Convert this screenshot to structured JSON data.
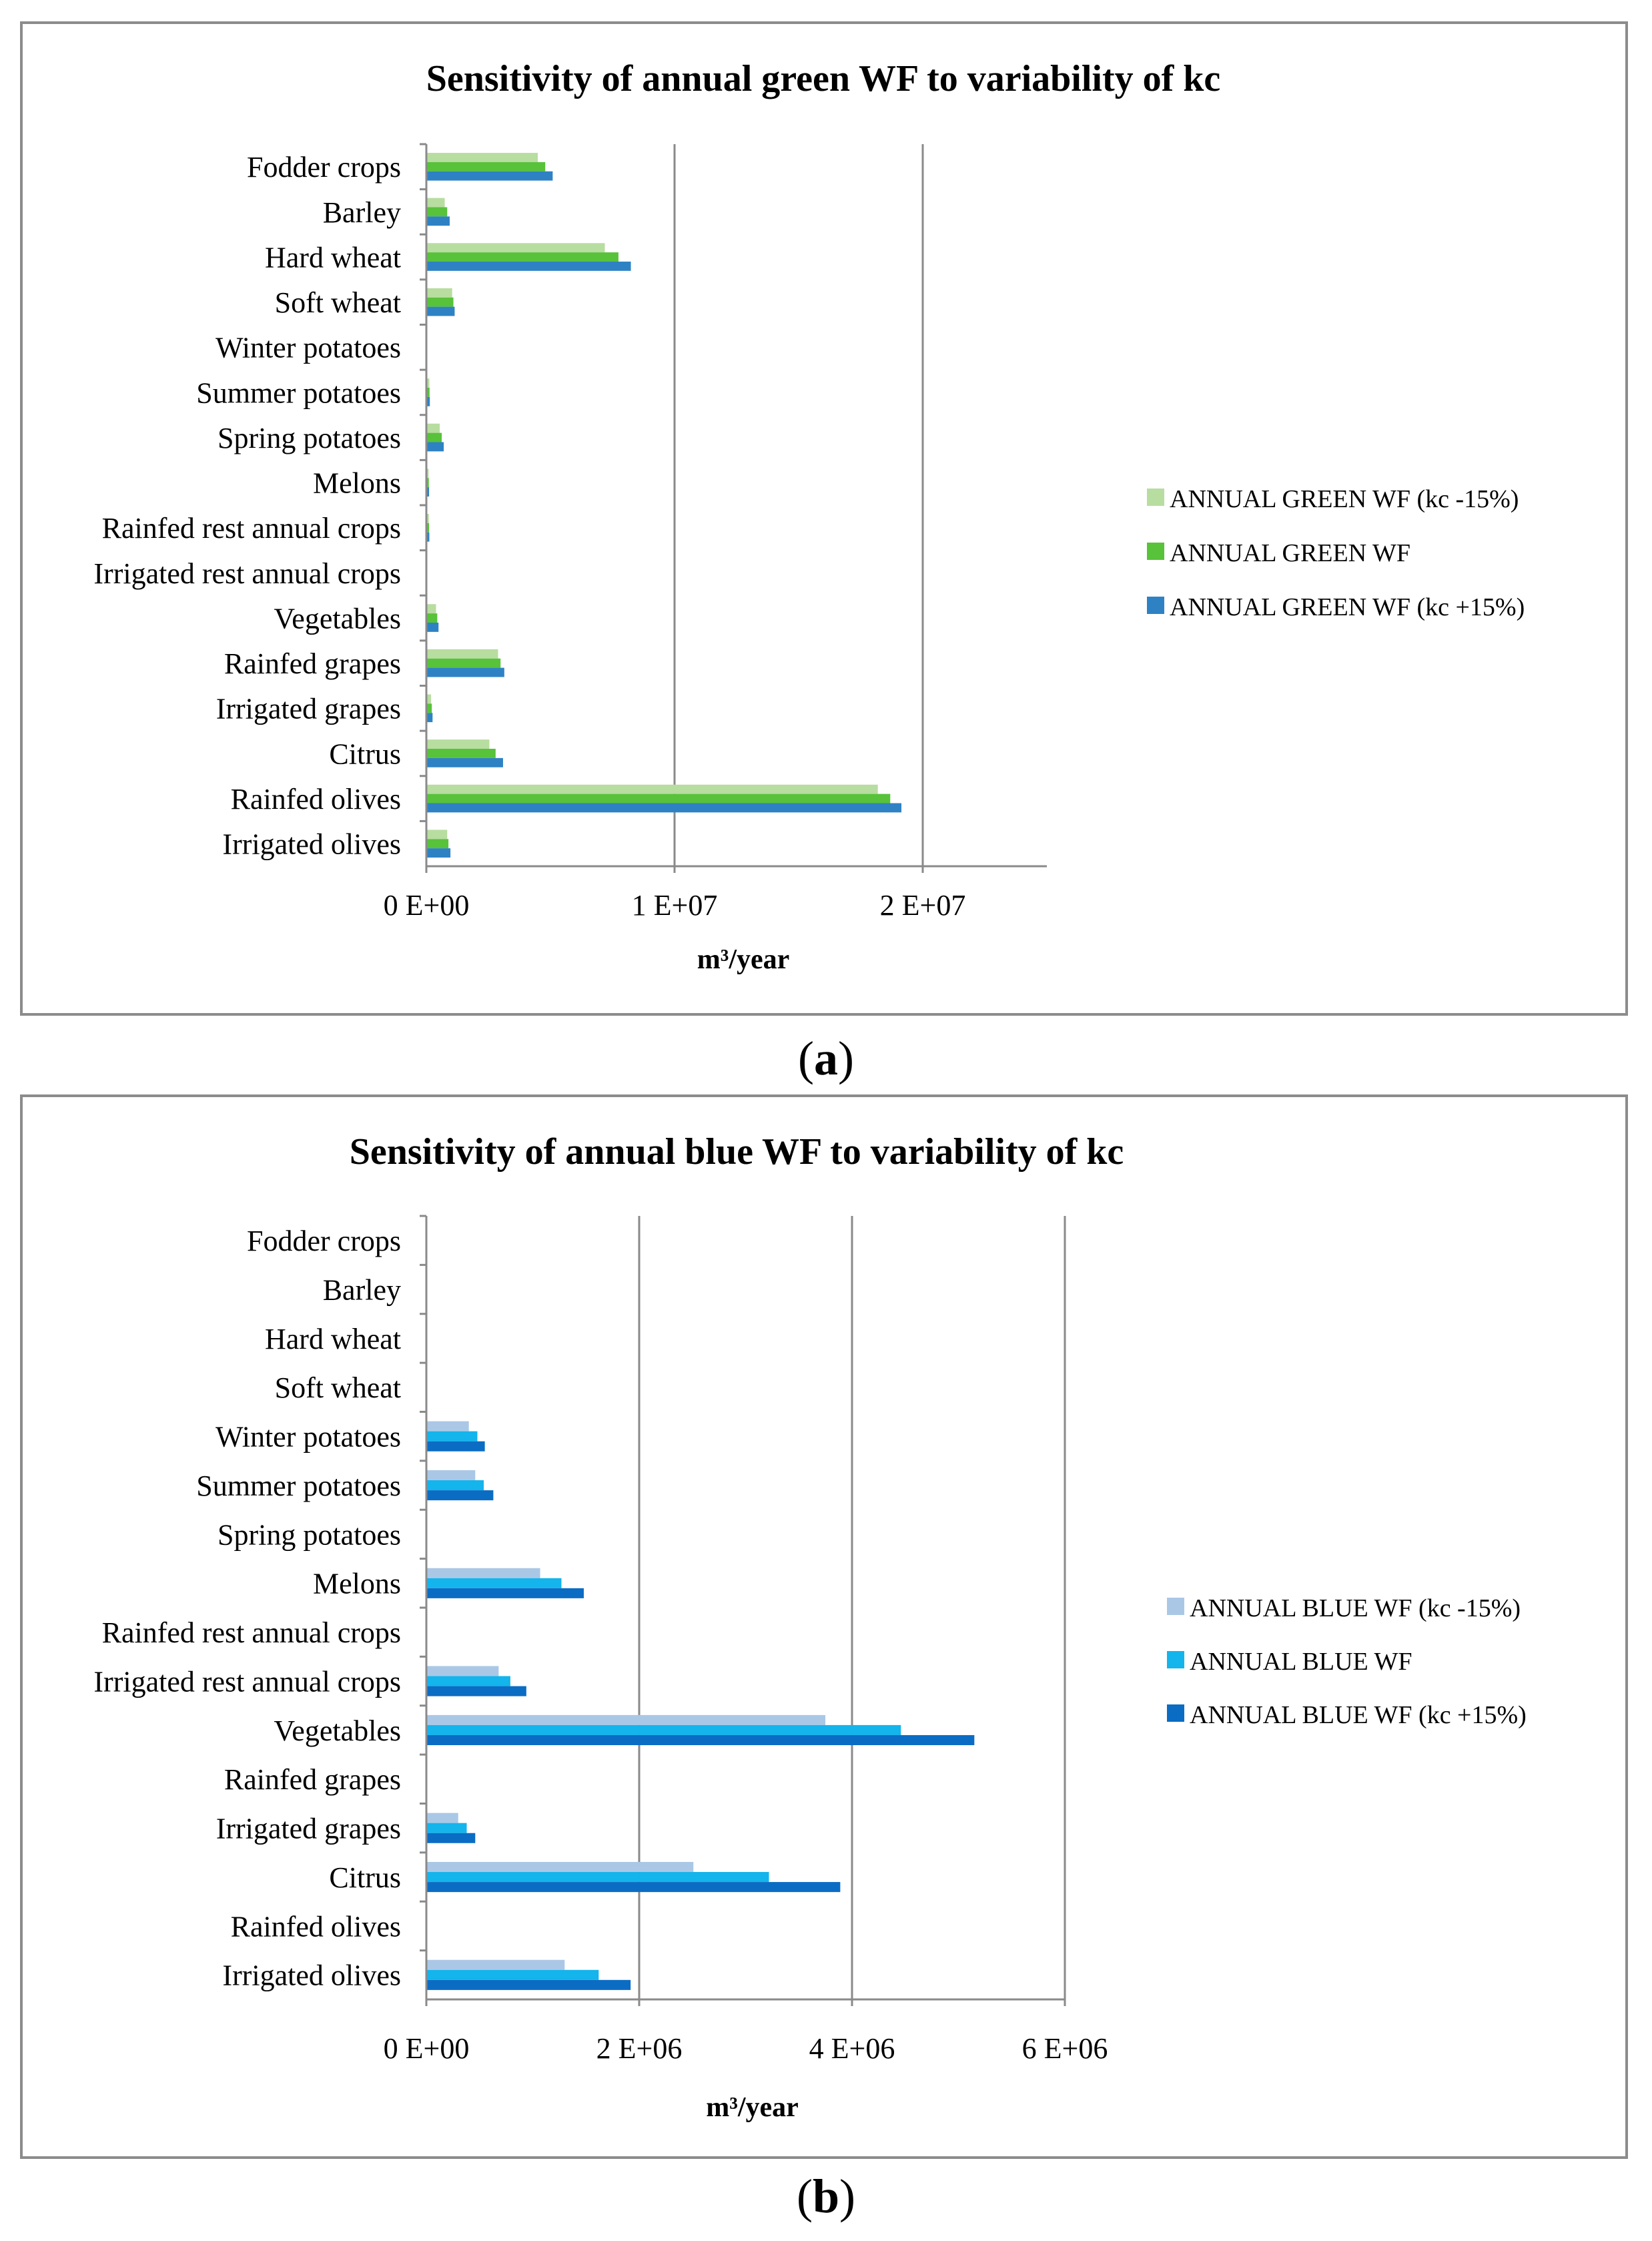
{
  "captions": {
    "a": "a",
    "b": "b"
  },
  "chart_data": [
    {
      "type": "bar",
      "orientation": "horizontal",
      "title": "Sensitivity of annual green WF to variability of  kc",
      "xlabel": "m³/year",
      "ylabel": "",
      "xlim": [
        0,
        25000000
      ],
      "xticks": [
        0,
        10000000,
        20000000
      ],
      "xtick_labels": [
        "0 E+00",
        "1 E+07",
        "2 E+07"
      ],
      "grid": true,
      "legend_position": "right",
      "categories": [
        "Fodder crops",
        "Barley",
        "Hard wheat",
        "Soft wheat",
        "Winter potatoes",
        "Summer potatoes",
        "Spring potatoes",
        "Melons",
        "Rainfed rest annual crops",
        "Irrigated rest annual crops",
        "Vegetables",
        "Rainfed grapes",
        "Irrigated grapes",
        "Citrus",
        "Rainfed olives",
        "Irrigated olives"
      ],
      "series": [
        {
          "name": "ANNUAL GREEN WF (kc -15%)",
          "color": "#b8dda0",
          "values": [
            4450000,
            700000,
            7150000,
            1000000,
            0,
            80000,
            500000,
            50000,
            60000,
            0,
            350000,
            2850000,
            150000,
            2500000,
            18150000,
            800000
          ]
        },
        {
          "name": "ANNUAL GREEN WF",
          "color": "#58c23a",
          "values": [
            4750000,
            800000,
            7700000,
            1050000,
            0,
            90000,
            580000,
            60000,
            70000,
            0,
            400000,
            2950000,
            180000,
            2750000,
            18650000,
            850000
          ]
        },
        {
          "name": "ANNUAL GREEN WF (kc +15%)",
          "color": "#2e82c4",
          "values": [
            5050000,
            900000,
            8200000,
            1100000,
            0,
            100000,
            660000,
            70000,
            80000,
            0,
            450000,
            3100000,
            210000,
            3050000,
            19100000,
            930000
          ]
        }
      ]
    },
    {
      "type": "bar",
      "orientation": "horizontal",
      "title": "Sensitivity of annual blue WF to variability of  kc",
      "xlabel": "m³/year",
      "ylabel": "",
      "xlim": [
        0,
        6000000
      ],
      "xticks": [
        0,
        2000000,
        4000000,
        6000000
      ],
      "xtick_labels": [
        "0 E+00",
        "2 E+06",
        "4 E+06",
        "6 E+06"
      ],
      "grid": true,
      "legend_position": "right",
      "categories": [
        "Fodder crops",
        "Barley",
        "Hard wheat",
        "Soft wheat",
        "Winter potatoes",
        "Summer potatoes",
        "Spring potatoes",
        "Melons",
        "Rainfed rest annual crops",
        "Irrigated rest annual crops",
        "Vegetables",
        "Rainfed grapes",
        "Irrigated grapes",
        "Citrus",
        "Rainfed olives",
        "Irrigated olives"
      ],
      "series": [
        {
          "name": "ANNUAL BLUE WF (kc -15%)",
          "color": "#aac8e6",
          "values": [
            0,
            0,
            0,
            0,
            390000,
            450000,
            0,
            1060000,
            0,
            670000,
            3740000,
            0,
            290000,
            2500000,
            0,
            1290000
          ]
        },
        {
          "name": "ANNUAL BLUE WF",
          "color": "#14b4ec",
          "values": [
            0,
            0,
            0,
            0,
            470000,
            530000,
            0,
            1260000,
            0,
            780000,
            4450000,
            0,
            370000,
            3210000,
            0,
            1610000
          ]
        },
        {
          "name": "ANNUAL BLUE WF (kc +15%)",
          "color": "#0b6cc4",
          "values": [
            0,
            0,
            0,
            0,
            540000,
            620000,
            0,
            1470000,
            0,
            930000,
            5140000,
            0,
            450000,
            3880000,
            0,
            1910000
          ]
        }
      ]
    }
  ]
}
